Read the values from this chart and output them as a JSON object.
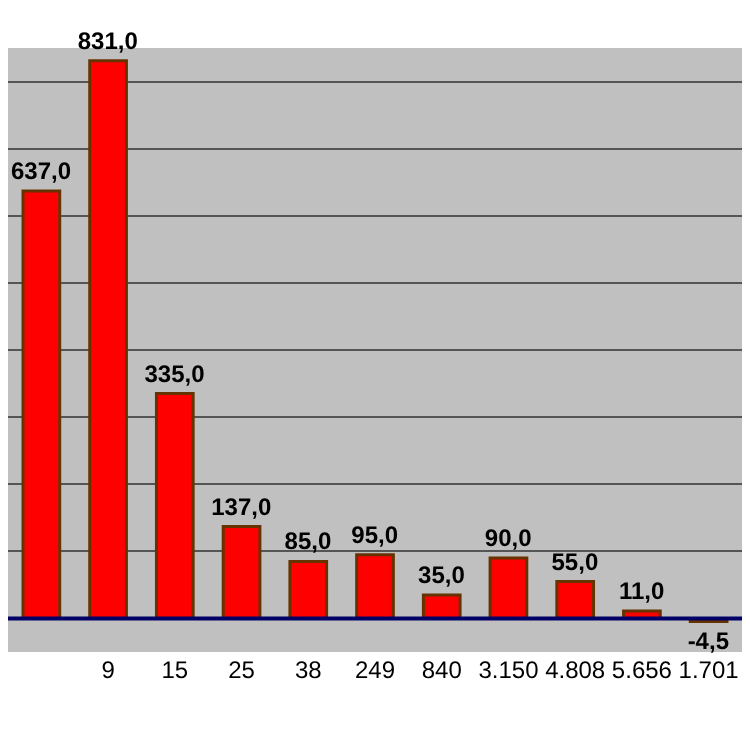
{
  "chart_data": {
    "type": "bar",
    "categories": [
      null,
      "9",
      "15",
      "25",
      "38",
      "249",
      "840",
      "3.150",
      "4.808",
      "5.656",
      "1.701"
    ],
    "values": [
      637.0,
      831.0,
      335.0,
      137.0,
      85.0,
      95.0,
      35.0,
      90.0,
      55.0,
      11.0,
      -4.5
    ],
    "value_labels": [
      "637,0",
      "831,0",
      "335,0",
      "137,0",
      "85,0",
      "95,0",
      "35,0",
      "90,0",
      "55,0",
      "11,0",
      "-4,5"
    ],
    "color": "#ff0000",
    "ylim": [
      -50,
      850
    ],
    "yticks": [
      {
        "value": 0,
        "label": null
      },
      {
        "value": 100,
        "label": null
      },
      {
        "value": 200,
        "label": null
      },
      {
        "value": 300,
        "label": null
      },
      {
        "value": 400,
        "label": null
      },
      {
        "value": 500,
        "label": null
      },
      {
        "value": 600,
        "label": null
      },
      {
        "value": 700,
        "label": null
      },
      {
        "value": 800,
        "label": null
      }
    ],
    "ref_lines": [
      {
        "axis": "y",
        "value": 0,
        "label": null,
        "color": "#000066"
      }
    ],
    "grid": "y",
    "tick_labels": "x",
    "legend": false
  }
}
